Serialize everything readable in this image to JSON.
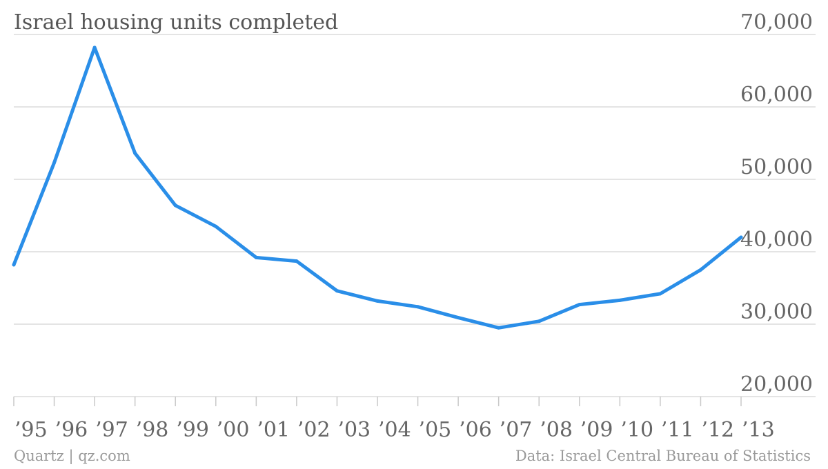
{
  "chart_data": {
    "type": "line",
    "title": "Israel housing units completed",
    "x": [
      1995,
      1996,
      1997,
      1998,
      1999,
      2000,
      2001,
      2002,
      2003,
      2004,
      2005,
      2006,
      2007,
      2008,
      2009,
      2010,
      2011,
      2012,
      2013
    ],
    "x_tick_labels": [
      "’95",
      "’96",
      "’97",
      "’98",
      "’99",
      "’00",
      "’01",
      "’02",
      "’03",
      "’04",
      "’05",
      "’06",
      "’07",
      "’08",
      "’09",
      "’10",
      "’11",
      "’12",
      "’13"
    ],
    "series": [
      {
        "values": [
          38200,
          52300,
          68200,
          53600,
          46400,
          43500,
          39200,
          38700,
          34600,
          33200,
          32400,
          30900,
          29500,
          30400,
          32700,
          33300,
          34200,
          37500,
          42000
        ],
        "color": "#2a8ee8"
      }
    ],
    "ylim": [
      20000,
      70000
    ],
    "y_ticks": [
      20000,
      30000,
      40000,
      50000,
      60000,
      70000
    ],
    "y_tick_labels": [
      "20,000",
      "30,000",
      "40,000",
      "50,000",
      "60,000",
      "70,000"
    ],
    "y_axis_side": "right",
    "grid": true,
    "legend": "none",
    "xlabel": "",
    "ylabel": ""
  },
  "footer": {
    "source_left": "Quartz | qz.com",
    "source_right": "Data: Israel Central Bureau of Statistics"
  }
}
